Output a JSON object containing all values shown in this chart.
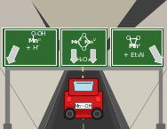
{
  "bg_color": "#f2f0ec",
  "sign_green": "#2e6b2e",
  "car_red": "#cc2020",
  "car_blue": "#b8dde8",
  "car_dark": "#880000",
  "road_dark": "#3a3a3a",
  "road_mid": "#555555",
  "road_light": "#888888",
  "grass_color": "#c8c2b0",
  "pole_color": "#909090",
  "plate_text": "Mnᴵᴵ-OH"
}
